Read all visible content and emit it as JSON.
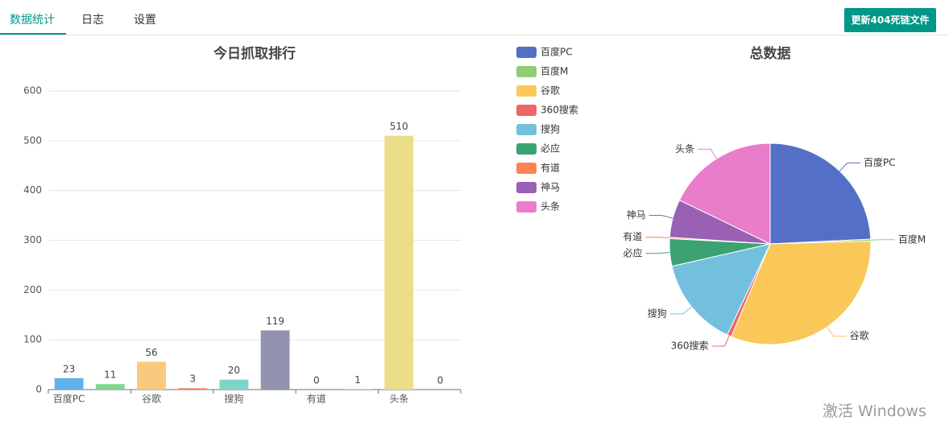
{
  "tabs": [
    "数据统计",
    "日志",
    "设置"
  ],
  "button": "更新404死链文件",
  "watermark": "激活 Windows",
  "chart_data": [
    {
      "type": "bar",
      "title": "今日抓取排行",
      "categories": [
        "百度PC",
        null,
        "谷歌",
        null,
        "搜狗",
        null,
        "有道",
        null,
        "头条",
        null
      ],
      "values": [
        23,
        11,
        56,
        3,
        20,
        119,
        0,
        1,
        510,
        0
      ],
      "colors": [
        "#63b1ea",
        "#7fd68e",
        "#f8ca7e",
        "#ee8b75",
        "#7fd4ca",
        "#9293ae",
        "#6bb0e6",
        "#f2a86f",
        "#ecde88",
        "#9ad17f"
      ],
      "ylim": [
        0,
        600
      ],
      "yticks": [
        0,
        100,
        200,
        300,
        400,
        500,
        600
      ],
      "grid": true
    },
    {
      "type": "pie",
      "title": "总数据",
      "categories": [
        "百度PC",
        "百度M",
        "谷歌",
        "360搜索",
        "搜狗",
        "必应",
        "有道",
        "神马",
        "头条"
      ],
      "values": [
        24.2,
        0.3,
        31.7,
        0.7,
        14.4,
        4.4,
        0.2,
        6.1,
        17.8
      ],
      "colors": [
        "#5470c6",
        "#91cc75",
        "#fac858",
        "#ee6666",
        "#73c0de",
        "#3ba272",
        "#fc8452",
        "#9a60b4",
        "#ea7ccc"
      ],
      "legend": "left"
    }
  ]
}
